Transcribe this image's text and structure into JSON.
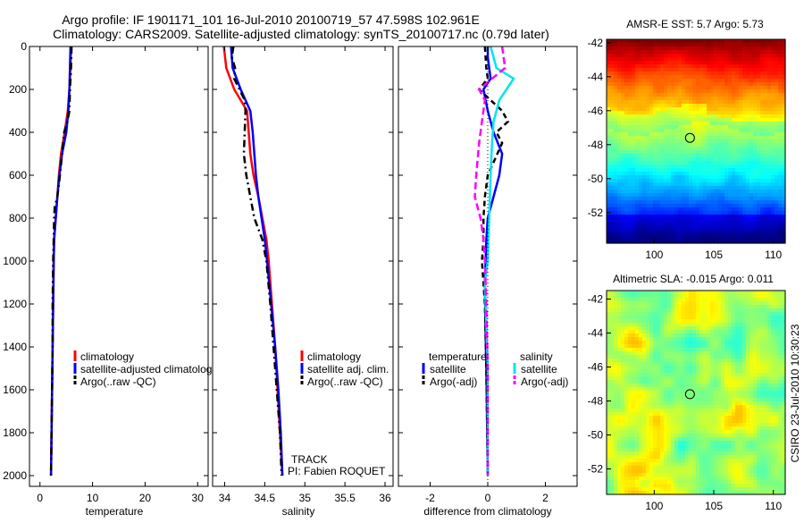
{
  "header": {
    "line1": "Argo profile: IF 1901171_101 16-Jul-2010 20100719_57 47.598S 102.961E",
    "line2": "Climatology: CARS2009. Satellite-adjusted climatology: synTS_20100717.nc (0.79d later)"
  },
  "chart_data": [
    {
      "type": "line",
      "id": "temperature",
      "xlabel": "temperature",
      "xlim": [
        -2,
        32
      ],
      "xticks": [
        0,
        10,
        20,
        30
      ],
      "ylim": [
        2050,
        0
      ],
      "yticks": [
        0,
        200,
        400,
        600,
        800,
        1000,
        1200,
        1400,
        1600,
        1800,
        2000
      ],
      "legend": [
        "climatology",
        "satellite-adjusted climatolog",
        "Argo(..raw -QC)"
      ],
      "series": [
        {
          "name": "climatology",
          "color": "#ff0000",
          "points": [
            [
              5.9,
              0
            ],
            [
              5.8,
              100
            ],
            [
              5.6,
              200
            ],
            [
              5.3,
              300
            ],
            [
              4.7,
              400
            ],
            [
              4.0,
              500
            ],
            [
              3.6,
              600
            ],
            [
              3.3,
              700
            ],
            [
              3.0,
              800
            ],
            [
              2.7,
              900
            ],
            [
              2.6,
              1000
            ],
            [
              2.5,
              1200
            ],
            [
              2.4,
              1400
            ],
            [
              2.3,
              1600
            ],
            [
              2.2,
              1800
            ],
            [
              2.1,
              2000
            ]
          ]
        },
        {
          "name": "satellite-adjusted climatology",
          "color": "#0000ff",
          "points": [
            [
              5.8,
              0
            ],
            [
              5.7,
              100
            ],
            [
              5.6,
              200
            ],
            [
              5.4,
              300
            ],
            [
              5.0,
              400
            ],
            [
              4.2,
              500
            ],
            [
              3.7,
              600
            ],
            [
              3.3,
              700
            ],
            [
              3.0,
              800
            ],
            [
              2.7,
              900
            ],
            [
              2.6,
              1000
            ],
            [
              2.5,
              1200
            ],
            [
              2.4,
              1400
            ],
            [
              2.3,
              1600
            ],
            [
              2.2,
              1800
            ],
            [
              2.1,
              2000
            ]
          ]
        },
        {
          "name": "Argo(..raw -QC)",
          "color": "#000000",
          "dash": "8 4 2 4",
          "points": [
            [
              6.0,
              0
            ],
            [
              5.9,
              100
            ],
            [
              5.7,
              200
            ],
            [
              5.6,
              300
            ],
            [
              5.2,
              350
            ],
            [
              4.6,
              400
            ],
            [
              4.2,
              500
            ],
            [
              3.8,
              600
            ],
            [
              3.3,
              700
            ],
            [
              2.8,
              750
            ],
            [
              2.7,
              800
            ],
            [
              2.6,
              900
            ],
            [
              2.5,
              1000
            ],
            [
              2.4,
              1200
            ],
            [
              2.4,
              1400
            ],
            [
              2.3,
              1600
            ],
            [
              2.2,
              1800
            ],
            [
              2.1,
              2000
            ]
          ]
        }
      ]
    },
    {
      "type": "line",
      "id": "salinity",
      "xlabel": "salinity",
      "xlim": [
        33.85,
        36.1
      ],
      "xticks": [
        34,
        34.5,
        35,
        35.5,
        36
      ],
      "ylim": [
        2050,
        0
      ],
      "legend": [
        "climatology",
        "satellite adj. clim.",
        "Argo(..raw -QC)"
      ],
      "annotations": [
        "TRACK",
        "PI: Fabien ROQUET"
      ],
      "series": [
        {
          "name": "climatology",
          "color": "#ff0000",
          "points": [
            [
              33.99,
              0
            ],
            [
              34.02,
              100
            ],
            [
              34.12,
              200
            ],
            [
              34.28,
              300
            ],
            [
              34.3,
              400
            ],
            [
              34.32,
              500
            ],
            [
              34.36,
              600
            ],
            [
              34.42,
              700
            ],
            [
              34.47,
              800
            ],
            [
              34.52,
              900
            ],
            [
              34.55,
              1000
            ],
            [
              34.59,
              1200
            ],
            [
              34.63,
              1400
            ],
            [
              34.66,
              1600
            ],
            [
              34.69,
              1800
            ],
            [
              34.72,
              2000
            ]
          ]
        },
        {
          "name": "satellite adj. clim.",
          "color": "#0000ff",
          "points": [
            [
              34.08,
              0
            ],
            [
              34.1,
              100
            ],
            [
              34.2,
              200
            ],
            [
              34.32,
              300
            ],
            [
              34.35,
              400
            ],
            [
              34.37,
              500
            ],
            [
              34.39,
              600
            ],
            [
              34.42,
              700
            ],
            [
              34.46,
              800
            ],
            [
              34.5,
              900
            ],
            [
              34.53,
              1000
            ],
            [
              34.58,
              1200
            ],
            [
              34.63,
              1400
            ],
            [
              34.67,
              1600
            ],
            [
              34.7,
              1800
            ],
            [
              34.72,
              2000
            ]
          ]
        },
        {
          "name": "Argo(..raw -QC)",
          "color": "#000000",
          "dash": "8 4 2 4",
          "points": [
            [
              34.11,
              0
            ],
            [
              34.09,
              50
            ],
            [
              34.13,
              100
            ],
            [
              34.12,
              150
            ],
            [
              34.25,
              250
            ],
            [
              34.26,
              300
            ],
            [
              34.25,
              400
            ],
            [
              34.24,
              500
            ],
            [
              34.27,
              600
            ],
            [
              34.32,
              700
            ],
            [
              34.37,
              800
            ],
            [
              34.47,
              900
            ],
            [
              34.52,
              1000
            ],
            [
              34.57,
              1200
            ],
            [
              34.61,
              1400
            ],
            [
              34.65,
              1600
            ],
            [
              34.69,
              1800
            ],
            [
              34.71,
              2000
            ]
          ]
        }
      ]
    },
    {
      "type": "line",
      "id": "difference",
      "xlabel": "difference from climatology",
      "xlim": [
        -3.1,
        3.1
      ],
      "xticks": [
        -2,
        0,
        2
      ],
      "ylim": [
        2050,
        0
      ],
      "legend_titles": [
        "temperature",
        "salinity"
      ],
      "legend": [
        "satellite",
        "Argo(-adj)",
        "satellite",
        "Argo(-adj)"
      ],
      "series": [
        {
          "name": "temperature satellite",
          "color": "#0000ff",
          "points": [
            [
              0.0,
              0
            ],
            [
              0.0,
              50
            ],
            [
              0.1,
              150
            ],
            [
              -0.15,
              200
            ],
            [
              0.0,
              300
            ],
            [
              0.2,
              400
            ],
            [
              0.5,
              500
            ],
            [
              0.4,
              600
            ],
            [
              0.2,
              700
            ],
            [
              0.0,
              800
            ],
            [
              -0.05,
              900
            ],
            [
              -0.1,
              1100
            ],
            [
              -0.08,
              1300
            ],
            [
              -0.05,
              1500
            ],
            [
              -0.02,
              1800
            ],
            [
              0.0,
              2000
            ]
          ]
        },
        {
          "name": "temperature Argo(-adj)",
          "color": "#000000",
          "dash": "6 4",
          "points": [
            [
              -0.1,
              0
            ],
            [
              -0.05,
              100
            ],
            [
              0.0,
              150
            ],
            [
              -0.3,
              200
            ],
            [
              0.5,
              300
            ],
            [
              0.7,
              350
            ],
            [
              0.3,
              400
            ],
            [
              0.5,
              450
            ],
            [
              0.0,
              600
            ],
            [
              -0.1,
              700
            ],
            [
              -0.15,
              800
            ],
            [
              -0.15,
              900
            ],
            [
              -0.2,
              1000
            ],
            [
              -0.1,
              1200
            ],
            [
              -0.05,
              1500
            ],
            [
              0.0,
              2000
            ]
          ]
        },
        {
          "name": "salinity satellite",
          "color": "#00e5ee",
          "points": [
            [
              0.1,
              0
            ],
            [
              0.3,
              100
            ],
            [
              0.9,
              150
            ],
            [
              0.4,
              250
            ],
            [
              0.2,
              350
            ],
            [
              0.15,
              450
            ],
            [
              0.1,
              600
            ],
            [
              0.05,
              800
            ],
            [
              0.0,
              1000
            ],
            [
              -0.1,
              1100
            ],
            [
              -0.05,
              1300
            ],
            [
              0.0,
              1500
            ],
            [
              0.0,
              1800
            ],
            [
              0.0,
              2000
            ]
          ]
        },
        {
          "name": "salinity Argo(-adj)",
          "color": "#ff00ff",
          "dash": "8 4",
          "points": [
            [
              0.5,
              0
            ],
            [
              0.6,
              100
            ],
            [
              -0.3,
              200
            ],
            [
              -0.1,
              250
            ],
            [
              -0.2,
              350
            ],
            [
              -0.3,
              450
            ],
            [
              -0.4,
              600
            ],
            [
              -0.45,
              700
            ],
            [
              -0.25,
              800
            ],
            [
              -0.15,
              900
            ],
            [
              -0.1,
              1000
            ],
            [
              -0.05,
              1200
            ],
            [
              0.0,
              1500
            ],
            [
              0.0,
              2000
            ]
          ]
        }
      ]
    },
    {
      "type": "heatmap",
      "id": "sst",
      "title": "AMSR-E SST: 5.7 Argo: 5.73",
      "xlim": [
        96,
        111
      ],
      "ylim": [
        -53.8,
        -41.8
      ],
      "xticks": [
        100,
        105,
        110
      ],
      "yticks": [
        -42,
        -44,
        -46,
        -48,
        -50,
        -52
      ],
      "marker": {
        "lon": 103.0,
        "lat": -47.6
      }
    },
    {
      "type": "heatmap",
      "id": "sla",
      "title": "Altimetric SLA: -0.015 Argo: 0.011",
      "xlim": [
        96,
        111
      ],
      "ylim": [
        -53.5,
        -41.5
      ],
      "xticks": [
        100,
        105,
        110
      ],
      "yticks": [
        -42,
        -44,
        -46,
        -48,
        -50,
        -52
      ],
      "marker": {
        "lon": 103.0,
        "lat": -47.6
      },
      "side_label": "CSIRO 23-Jul-2010 10:30:23"
    }
  ]
}
